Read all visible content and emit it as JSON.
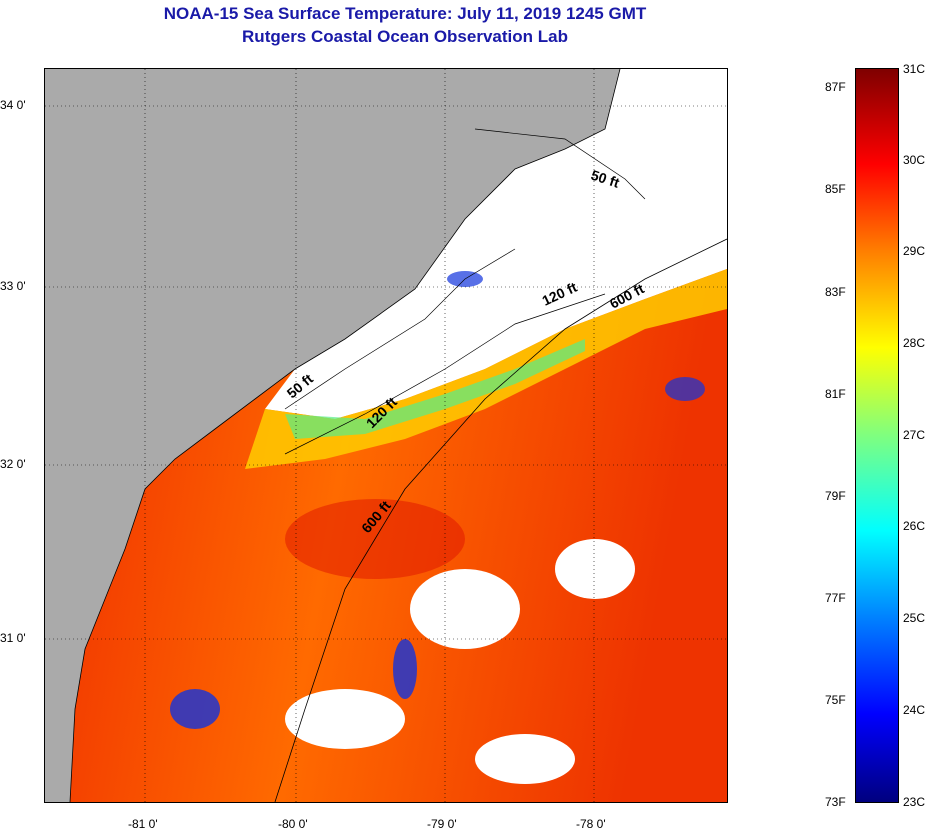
{
  "title": "NOAA-15 Sea Surface Temperature:  July 11, 2019 1245 GMT",
  "subtitle": "Rutgers Coastal Ocean Observation Lab",
  "map": {
    "lat_ticks": [
      "34 0'",
      "33 0'",
      "32 0'",
      "31 0'"
    ],
    "lon_ticks": [
      "-81 0'",
      "-80 0'",
      "-79 0'",
      "-78 0'"
    ],
    "isobaths": [
      "50 ft",
      "120 ft",
      "600 ft",
      "50 ft",
      "120 ft",
      "600 ft"
    ],
    "colors": {
      "land": "#aaaaaa",
      "cloud": "#ffffff",
      "warm": "#ee2200",
      "cool": "#0022ee"
    }
  },
  "colorbar": {
    "fahrenheit": [
      "87F",
      "85F",
      "83F",
      "81F",
      "79F",
      "77F",
      "75F",
      "73F"
    ],
    "celsius": [
      "31C",
      "30C",
      "29C",
      "28C",
      "27C",
      "26C",
      "25C",
      "24C",
      "23C"
    ],
    "range_c": [
      23,
      31
    ],
    "colormap": "jet"
  }
}
